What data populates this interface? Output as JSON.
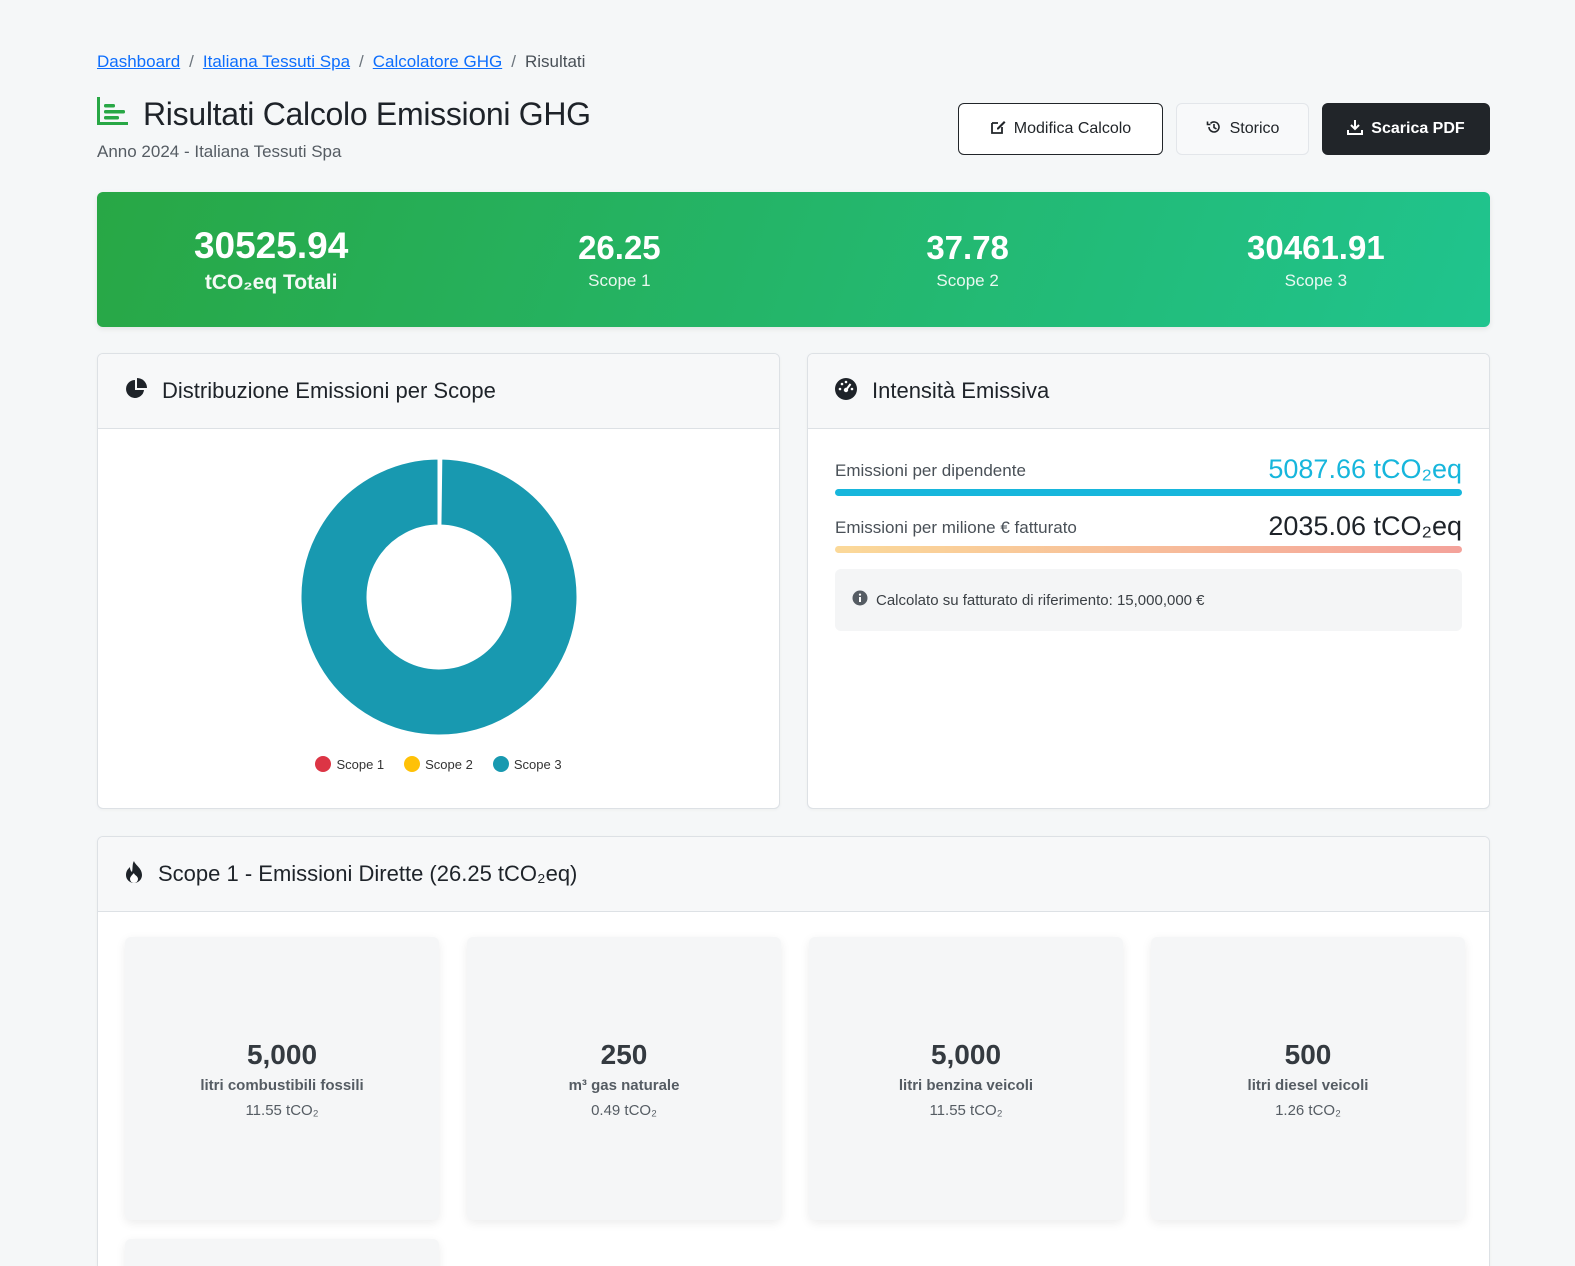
{
  "breadcrumb": {
    "items": [
      "Dashboard",
      "Italiana Tessuti Spa",
      "Calcolatore GHG"
    ],
    "current": "Risultati",
    "separator": "/"
  },
  "header": {
    "title": "Risultati Calcolo Emissioni GHG",
    "subtitle": "Anno 2024 - Italiana Tessuti Spa",
    "icon": "chart-bar-icon"
  },
  "actions": {
    "edit_label": "Modifica Calcolo",
    "history_label": "Storico",
    "download_label": "Scarica PDF"
  },
  "summary": {
    "total_value": "30525.94",
    "total_label": "tCO₂eq Totali",
    "scope1_value": "26.25",
    "scope1_label": "Scope 1",
    "scope2_value": "37.78",
    "scope2_label": "Scope 2",
    "scope3_value": "30461.91",
    "scope3_label": "Scope 3"
  },
  "distribution": {
    "title": "Distribuzione Emissioni per Scope",
    "icon": "pie-chart-icon"
  },
  "chart_data": {
    "type": "pie",
    "donut": true,
    "categories": [
      "Scope 1",
      "Scope 2",
      "Scope 3"
    ],
    "values": [
      26.25,
      37.78,
      30461.91
    ],
    "colors": [
      "#dc3545",
      "#ffc107",
      "#1899b0"
    ],
    "legend_position": "bottom"
  },
  "intensity": {
    "title": "Intensità Emissiva",
    "icon": "gauge-icon",
    "per_employee_label": "Emissioni per dipendente",
    "per_employee_value": "5087.66 tCO₂eq",
    "per_revenue_label": "Emissioni per milione € fatturato",
    "per_revenue_value": "2035.06 tCO₂eq",
    "info_text": "Calcolato su fatturato di riferimento: 15,000,000 €",
    "accent_color": "#17b6dc"
  },
  "scope1": {
    "title": "Scope 1 - Emissioni Dirette (26.25 tCO₂eq)",
    "icon": "flame-icon",
    "items": [
      {
        "quantity": "5,000",
        "unit": "litri combustibili fossili",
        "emissions": "11.55 tCO₂"
      },
      {
        "quantity": "250",
        "unit": "m³ gas naturale",
        "emissions": "0.49 tCO₂"
      },
      {
        "quantity": "5,000",
        "unit": "litri benzina veicoli",
        "emissions": "11.55 tCO₂"
      },
      {
        "quantity": "500",
        "unit": "litri diesel veicoli",
        "emissions": "1.26 tCO₂"
      }
    ]
  }
}
